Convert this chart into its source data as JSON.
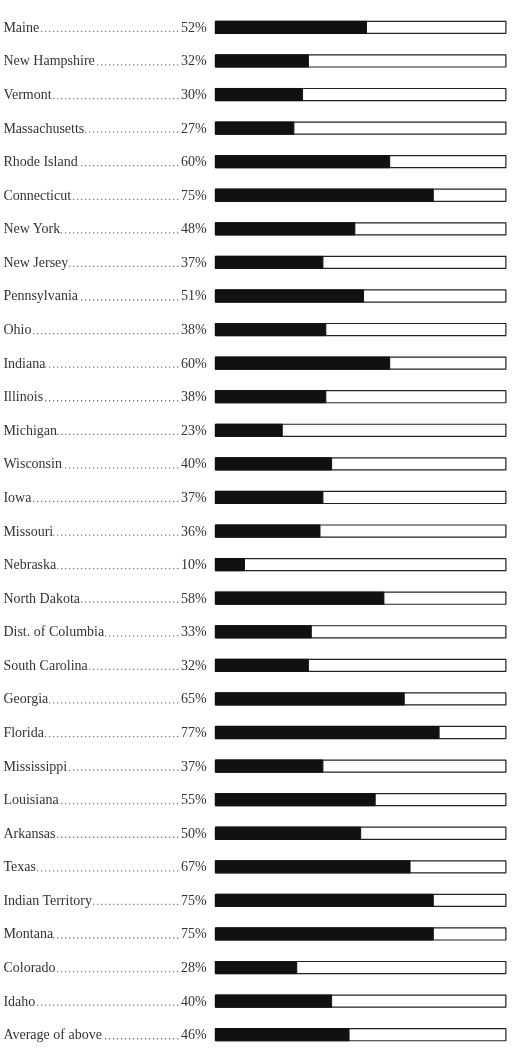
{
  "chart_data": {
    "type": "bar",
    "orientation": "horizontal",
    "categories": [
      "Maine",
      "New Hampshire",
      "Vermont",
      "Massachusetts",
      "Rhode Island",
      "Connecticut",
      "New York",
      "New Jersey",
      "Pennsylvania",
      "Ohio",
      "Indiana",
      "Illinois",
      "Michigan",
      "Wisconsin",
      "Iowa",
      "Missouri",
      "Nebraska",
      "North Dakota",
      "Dist. of Columbia",
      "South Carolina",
      "Georgia",
      "Florida",
      "Mississippi",
      "Louisiana",
      "Arkansas",
      "Texas",
      "Indian Territory",
      "Montana",
      "Colorado",
      "Idaho",
      "Average of above"
    ],
    "values": [
      52,
      32,
      30,
      27,
      60,
      75,
      48,
      37,
      51,
      38,
      60,
      38,
      23,
      40,
      37,
      36,
      10,
      58,
      33,
      32,
      65,
      77,
      37,
      55,
      50,
      67,
      75,
      75,
      28,
      40,
      46
    ],
    "value_labels": [
      "52%",
      "32%",
      "30%",
      "27%",
      "60%",
      "75%",
      "48%",
      "37%",
      "51%",
      "38%",
      "60%",
      "38%",
      "23%",
      "40%",
      "37%",
      "36%",
      "10%",
      "58%",
      "33%",
      "32%",
      "65%",
      "77%",
      "37%",
      "55%",
      "50%",
      "67%",
      "75%",
      "75%",
      "28%",
      "40%",
      "46%"
    ],
    "color": "#111111",
    "xlim": [
      0,
      100
    ],
    "tick_labels": false,
    "grid": false
  }
}
